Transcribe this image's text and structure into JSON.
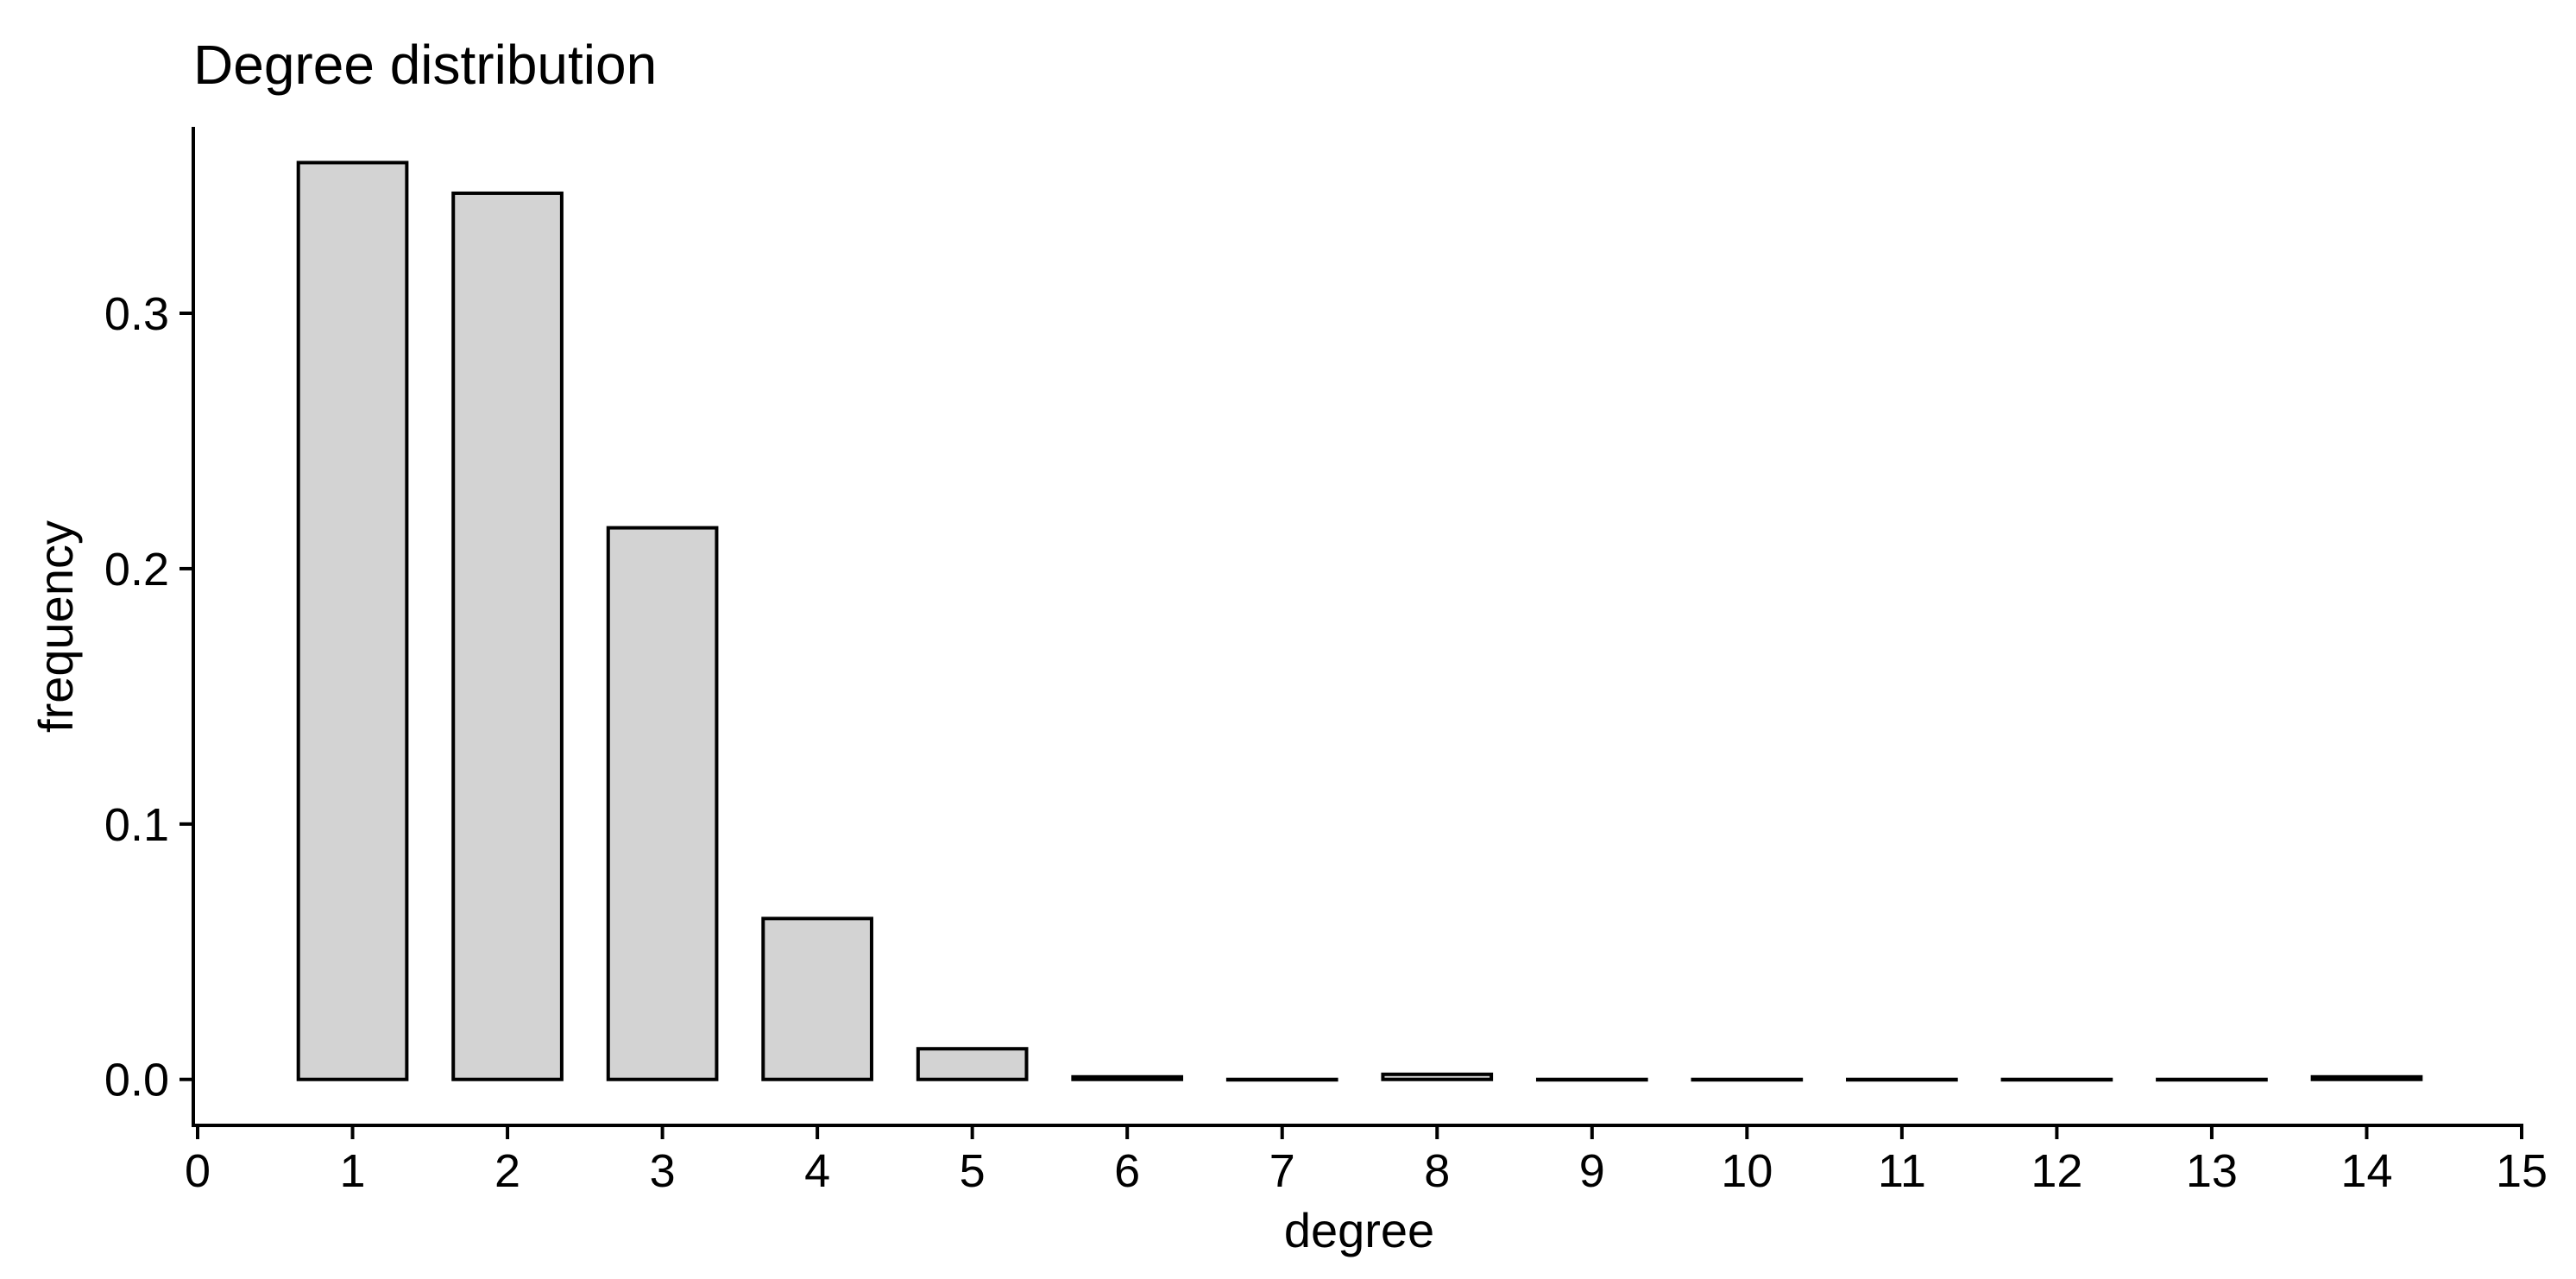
{
  "chart_data": {
    "type": "bar",
    "title": "Degree distribution",
    "xlabel": "degree",
    "ylabel": "frequency",
    "categories": [
      1,
      2,
      3,
      4,
      5,
      6,
      7,
      8,
      9,
      10,
      11,
      12,
      13,
      14
    ],
    "values": [
      0.359,
      0.347,
      0.216,
      0.063,
      0.012,
      0.001,
      0.0,
      0.002,
      0.0,
      0.0,
      0.0,
      0.0,
      0.0,
      0.001
    ],
    "xlim": [
      0,
      15
    ],
    "ylim": [
      -0.018,
      0.373
    ],
    "x_ticks": [
      "0",
      "1",
      "2",
      "3",
      "4",
      "5",
      "6",
      "7",
      "8",
      "9",
      "10",
      "11",
      "12",
      "13",
      "14",
      "15"
    ],
    "y_ticks": [
      "0.0",
      "0.1",
      "0.2",
      "0.3"
    ],
    "grid": false,
    "legend": "none",
    "colors": {
      "bar_fill": "#d3d3d3",
      "bar_stroke": "#000000",
      "axis": "#000000"
    }
  }
}
